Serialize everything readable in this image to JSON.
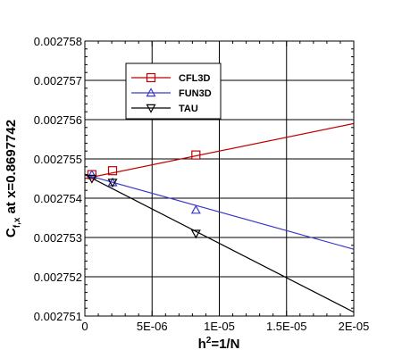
{
  "chart_data": {
    "type": "line",
    "xlabel": "h",
    "xlabel_sup": "2",
    "xlabel_rest": "=1/N",
    "ylabel": "C",
    "ylabel_sub": "f,x",
    "ylabel_rest": " at x=0.8697742",
    "xlim": [
      0,
      2e-05
    ],
    "ylim": [
      0.002751,
      0.002758
    ],
    "x_ticks": [
      0,
      5e-06,
      1e-05,
      1.5e-05,
      2e-05
    ],
    "x_tick_labels": [
      "0",
      "5E-06",
      "1E-05",
      "1.5E-05",
      "2E-05"
    ],
    "y_ticks": [
      0.002751,
      0.002752,
      0.002753,
      0.002754,
      0.002755,
      0.002756,
      0.002757,
      0.002758
    ],
    "y_tick_labels": [
      "0.002751",
      "0.002752",
      "0.002753",
      "0.002754",
      "0.002755",
      "0.002756",
      "0.002757",
      "0.002758"
    ],
    "grid": true,
    "legend_position": "top-left",
    "series": [
      {
        "name": "CFL3D",
        "color": "#c00000",
        "marker": "square",
        "points": [
          [
            5.2e-07,
            0.0027546
          ],
          [
            2.06e-06,
            0.0027547
          ],
          [
            8.26e-06,
            0.0027551
          ]
        ],
        "fit_line": [
          [
            0,
            0.0027545
          ],
          [
            2e-05,
            0.0027559
          ]
        ]
      },
      {
        "name": "FUN3D",
        "color": "#3a3ac8",
        "marker": "triangle-up",
        "points": [
          [
            5.2e-07,
            0.0027546
          ],
          [
            2.06e-06,
            0.0027544
          ],
          [
            8.26e-06,
            0.0027537
          ]
        ],
        "fit_line": [
          [
            0,
            0.0027546
          ],
          [
            2e-05,
            0.0027527
          ]
        ]
      },
      {
        "name": "TAU",
        "color": "#000000",
        "marker": "triangle-down",
        "points": [
          [
            5.2e-07,
            0.0027545
          ],
          [
            2.06e-06,
            0.0027544
          ],
          [
            8.26e-06,
            0.0027531
          ]
        ],
        "fit_line": [
          [
            0,
            0.0027546
          ],
          [
            2e-05,
            0.0027511
          ]
        ]
      }
    ]
  }
}
